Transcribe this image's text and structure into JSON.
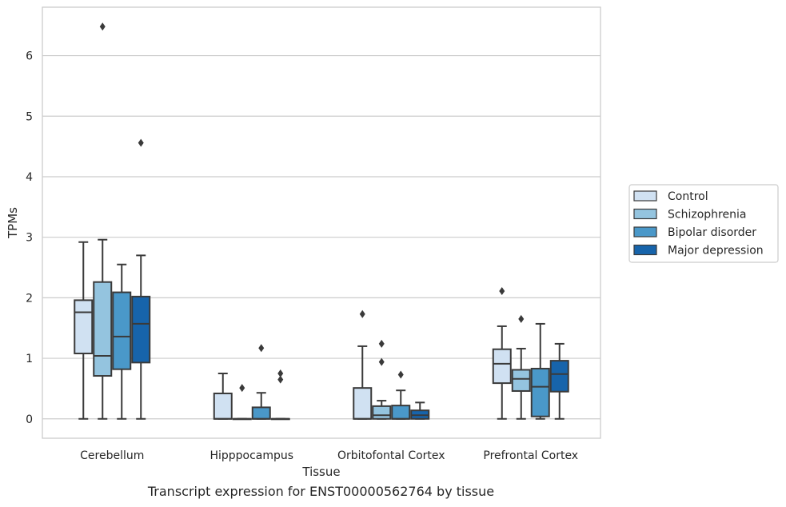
{
  "caption": "Transcript expression for ENST00000562764 by tissue",
  "colors": {
    "series": [
      "#d0e1f2",
      "#94c4df",
      "#4a98c9",
      "#1764ab"
    ],
    "grid": "#cccccc",
    "box_edge": "#3a3a3a"
  },
  "chart_data": {
    "type": "box",
    "title": "",
    "xlabel": "Tissue",
    "ylabel": "TPMs",
    "ylim": [
      -0.32,
      6.8
    ],
    "yticks": [
      0,
      1,
      2,
      3,
      4,
      5,
      6
    ],
    "grid": true,
    "legend_position": "right",
    "categories": [
      "Cerebellum",
      "Hipppocampus",
      "Orbitofontal Cortex",
      "Prefrontal Cortex"
    ],
    "series": [
      {
        "name": "Control",
        "boxes": [
          {
            "whislo": 0,
            "q1": 1.08,
            "med": 1.76,
            "q3": 1.96,
            "whishi": 2.92,
            "fliers": []
          },
          {
            "whislo": 0,
            "q1": 0,
            "med": 0,
            "q3": 0.42,
            "whishi": 0.75,
            "fliers": []
          },
          {
            "whislo": 0,
            "q1": 0,
            "med": 0,
            "q3": 0.51,
            "whishi": 1.2,
            "fliers": [
              1.73
            ]
          },
          {
            "whislo": 0,
            "q1": 0.59,
            "med": 0.91,
            "q3": 1.15,
            "whishi": 1.53,
            "fliers": [
              2.11
            ]
          }
        ]
      },
      {
        "name": "Schizophrenia",
        "boxes": [
          {
            "whislo": 0,
            "q1": 0.71,
            "med": 1.04,
            "q3": 2.26,
            "whishi": 2.96,
            "fliers": [
              6.48
            ]
          },
          {
            "whislo": 0,
            "q1": 0,
            "med": 0,
            "q3": 0,
            "whishi": 0,
            "fliers": [
              0.51
            ]
          },
          {
            "whislo": 0,
            "q1": 0,
            "med": 0.06,
            "q3": 0.21,
            "whishi": 0.3,
            "fliers": [
              0.94,
              1.24
            ]
          },
          {
            "whislo": 0,
            "q1": 0.46,
            "med": 0.66,
            "q3": 0.81,
            "whishi": 1.16,
            "fliers": [
              1.65
            ]
          }
        ]
      },
      {
        "name": "Bipolar disorder",
        "boxes": [
          {
            "whislo": 0,
            "q1": 0.82,
            "med": 1.36,
            "q3": 2.09,
            "whishi": 2.55,
            "fliers": []
          },
          {
            "whislo": 0,
            "q1": 0,
            "med": 0,
            "q3": 0.19,
            "whishi": 0.43,
            "fliers": [
              1.17
            ]
          },
          {
            "whislo": 0,
            "q1": 0,
            "med": 0,
            "q3": 0.22,
            "whishi": 0.47,
            "fliers": [
              0.73
            ]
          },
          {
            "whislo": 0,
            "q1": 0.04,
            "med": 0.53,
            "q3": 0.83,
            "whishi": 1.57,
            "fliers": []
          }
        ]
      },
      {
        "name": "Major depression",
        "boxes": [
          {
            "whislo": 0,
            "q1": 0.93,
            "med": 1.57,
            "q3": 2.02,
            "whishi": 2.7,
            "fliers": [
              4.56
            ]
          },
          {
            "whislo": 0,
            "q1": 0,
            "med": 0,
            "q3": 0,
            "whishi": 0,
            "fliers": [
              0.65,
              0.75
            ]
          },
          {
            "whislo": 0,
            "q1": 0,
            "med": 0.06,
            "q3": 0.14,
            "whishi": 0.27,
            "fliers": []
          },
          {
            "whislo": 0,
            "q1": 0.45,
            "med": 0.74,
            "q3": 0.96,
            "whishi": 1.24,
            "fliers": []
          }
        ]
      }
    ]
  }
}
